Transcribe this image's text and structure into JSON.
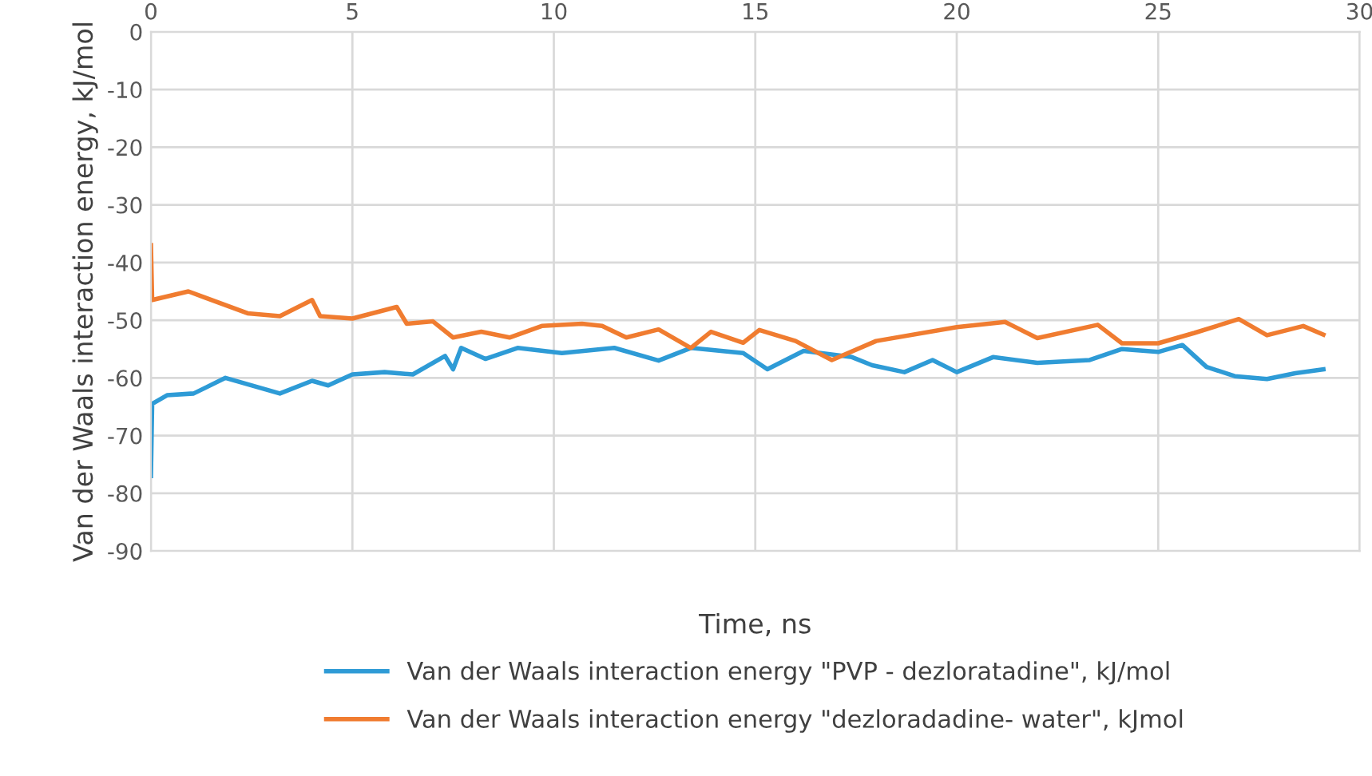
{
  "chart_data": {
    "type": "line",
    "xlabel": "Time, ns",
    "ylabel": "Van der Waals interaction energy, kJ/mol",
    "xlim": [
      0,
      30
    ],
    "xticks": [
      0,
      5,
      10,
      15,
      20,
      25,
      30
    ],
    "ylim": [
      -90,
      0
    ],
    "yticks": [
      0,
      -10,
      -20,
      -30,
      -40,
      -50,
      -60,
      -70,
      -80,
      -90
    ],
    "grid": true,
    "legend": "bottom",
    "marker": "none",
    "line_style": "solid",
    "series": [
      {
        "name": "Van der Waals interaction energy \"PVP - dezloratadine\", kJ/mol",
        "color": "#2e9bd6",
        "x": [
          0,
          0.03,
          0.4,
          1.06,
          1.85,
          3.2,
          4.0,
          4.4,
          5.0,
          5.8,
          6.5,
          7.3,
          7.5,
          7.7,
          8.3,
          9.1,
          10.2,
          11.5,
          12.6,
          13.4,
          14.7,
          15.3,
          16.2,
          17.4,
          17.9,
          18.7,
          19.4,
          20,
          20.9,
          22,
          23.3,
          24.1,
          25,
          25.6,
          26.2,
          26.9,
          27.7,
          28.4,
          29.1
        ],
        "values": [
          -77,
          -64.5,
          -63,
          -62.7,
          -60,
          -62.7,
          -60.5,
          -61.3,
          -59.4,
          -59,
          -59.4,
          -56.2,
          -58.5,
          -54.8,
          -56.7,
          -54.8,
          -55.7,
          -54.8,
          -57,
          -54.8,
          -55.7,
          -58.5,
          -55.3,
          -56.4,
          -57.8,
          -59,
          -56.9,
          -59,
          -56.4,
          -57.4,
          -56.9,
          -55,
          -55.5,
          -54.3,
          -58.1,
          -59.7,
          -60.2,
          -59.2,
          -58.5
        ]
      },
      {
        "name": "Van der Waals interaction energy \"dezloradadine- water\", kJmol",
        "color": "#f07c30",
        "x": [
          0,
          0.03,
          0.93,
          2.4,
          3.2,
          4.0,
          4.2,
          5.0,
          6.1,
          6.35,
          7.0,
          7.5,
          8.2,
          8.9,
          9.7,
          10.7,
          11.2,
          11.8,
          12.6,
          13.4,
          13.9,
          14.7,
          15.1,
          16.0,
          16.9,
          18,
          20,
          21.2,
          22,
          23.5,
          24.1,
          25,
          25.9,
          27,
          27.7,
          28.6,
          29.1
        ],
        "values": [
          -37,
          -46.5,
          -45,
          -48.8,
          -49.3,
          -46.5,
          -49.3,
          -49.7,
          -47.7,
          -50.6,
          -50.2,
          -53,
          -52,
          -53,
          -51,
          -50.6,
          -51,
          -53,
          -51.6,
          -54.8,
          -52,
          -53.9,
          -51.7,
          -53.6,
          -56.9,
          -53.6,
          -51.2,
          -50.3,
          -53.1,
          -50.8,
          -54,
          -54,
          -52.2,
          -49.8,
          -52.6,
          -51,
          -52.5
        ]
      }
    ]
  }
}
